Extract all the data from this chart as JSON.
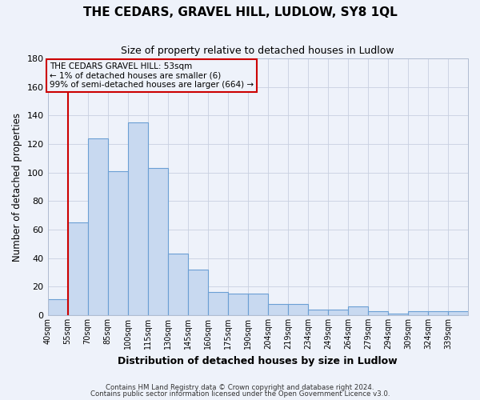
{
  "title": "THE CEDARS, GRAVEL HILL, LUDLOW, SY8 1QL",
  "subtitle": "Size of property relative to detached houses in Ludlow",
  "xlabel": "Distribution of detached houses by size in Ludlow",
  "ylabel": "Number of detached properties",
  "annotation_line1": "THE CEDARS GRAVEL HILL: 53sqm",
  "annotation_line2": "← 1% of detached houses are smaller (6)",
  "annotation_line3": "99% of semi-detached houses are larger (664) →",
  "bar_color": "#c8d9f0",
  "bar_edge_color": "#6b9fd4",
  "background_color": "#eef2fa",
  "vline_color": "#cc0000",
  "vline_x_index": 1,
  "ylim": [
    0,
    180
  ],
  "yticks": [
    0,
    20,
    40,
    60,
    80,
    100,
    120,
    140,
    160,
    180
  ],
  "categories": [
    "40sqm",
    "55sqm",
    "70sqm",
    "85sqm",
    "100sqm",
    "115sqm",
    "130sqm",
    "145sqm",
    "160sqm",
    "175sqm",
    "190sqm",
    "204sqm",
    "219sqm",
    "234sqm",
    "249sqm",
    "264sqm",
    "279sqm",
    "294sqm",
    "309sqm",
    "324sqm",
    "339sqm"
  ],
  "values": [
    11,
    65,
    124,
    101,
    135,
    103,
    43,
    32,
    16,
    15,
    15,
    8,
    8,
    4,
    4,
    6,
    3,
    1,
    3,
    3,
    3
  ],
  "footer1": "Contains HM Land Registry data © Crown copyright and database right 2024.",
  "footer2": "Contains public sector information licensed under the Open Government Licence v3.0."
}
